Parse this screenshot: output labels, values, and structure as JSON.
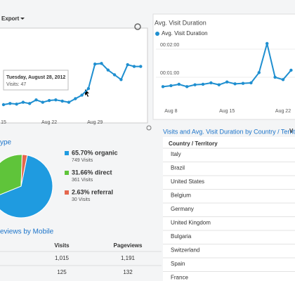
{
  "export_label": "Export",
  "visits_chart": {
    "categories": [
      "15",
      null,
      null,
      null,
      null,
      null,
      null,
      "Aug 22",
      null,
      null,
      null,
      null,
      null,
      null,
      "Aug 29",
      null,
      null,
      null,
      null,
      null,
      null,
      null
    ],
    "values": [
      20,
      22,
      21,
      24,
      22,
      28,
      24,
      27,
      28,
      26,
      24,
      30,
      36,
      47,
      88,
      89,
      78,
      70,
      62,
      87,
      84,
      84
    ],
    "tooltip_date": "Tuesday, August 28, 2012",
    "tooltip_value": "Visits: 47"
  },
  "duration_chart": {
    "title": "Avg. Visit Duration",
    "legend": "Avg. Visit Duration",
    "categories": [
      null,
      "Aug 8",
      null,
      null,
      null,
      null,
      null,
      null,
      "Aug 15",
      null,
      null,
      null,
      null,
      null,
      null,
      "Aug 22",
      null
    ],
    "values": [
      40,
      42,
      45,
      40,
      44,
      45,
      48,
      44,
      50,
      46,
      47,
      48,
      70,
      132,
      60,
      55,
      75
    ],
    "yticks": [
      {
        "value": 120,
        "label": "00:02:00"
      },
      {
        "value": 60,
        "label": "00:01:00"
      }
    ]
  },
  "pie": {
    "title": "ype",
    "slices": [
      {
        "label": "65.70% organic",
        "percent": 65.7,
        "visits": "749 Visits",
        "color": "#1f9be0"
      },
      {
        "label": "31.66% direct",
        "percent": 31.66,
        "visits": "361 Visits",
        "color": "#5fc43a"
      },
      {
        "label": "2.63% referral",
        "percent": 2.63,
        "visits": "30 Visits",
        "color": "#e4674e"
      }
    ]
  },
  "mobile": {
    "title": "eviews by Mobile",
    "headers": [
      "Visits",
      "Pageviews"
    ],
    "rows": [
      [
        "1,015",
        "1,191"
      ],
      [
        "125",
        "132"
      ]
    ]
  },
  "country": {
    "title": "Visits and Avg. Visit Duration by Country / Territ",
    "headers": [
      "Country / Territory",
      "V"
    ],
    "rows": [
      "Italy",
      "Brazil",
      "United States",
      "Belgium",
      "Germany",
      "United Kingdom",
      "Bulgaria",
      "Switzerland",
      "Spain",
      "France"
    ]
  }
}
